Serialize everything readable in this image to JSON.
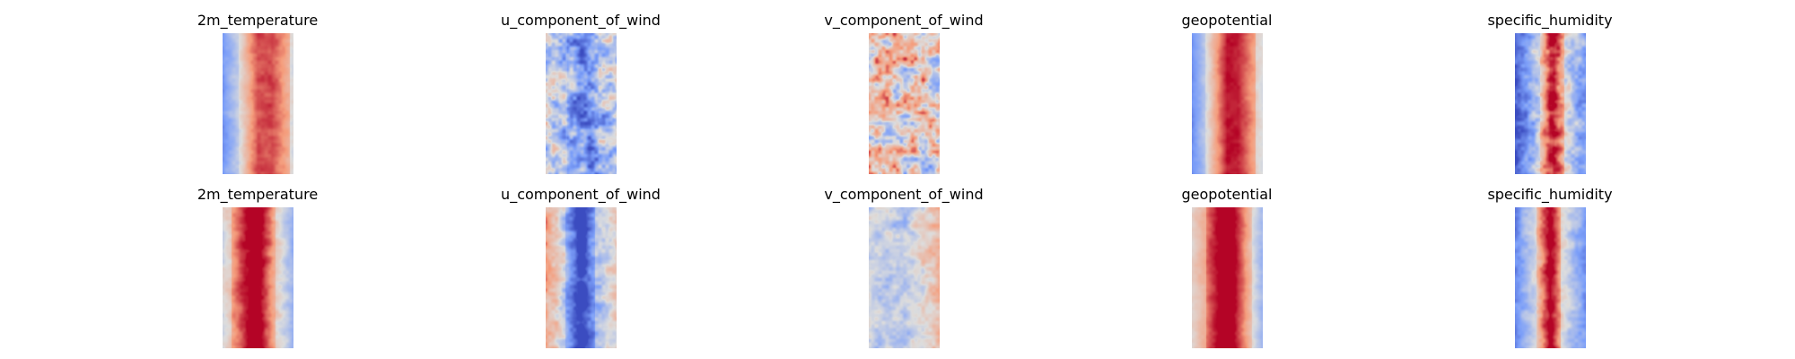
{
  "chart_data": [
    {
      "type": "heatmap",
      "title": "2m_temperature",
      "colormap": "coolwarm",
      "pattern": {
        "edge_left": -0.55,
        "edge_right": 0.0,
        "center": 0.4,
        "band_start": 0.22,
        "band_end": 0.95,
        "band_strength": 0.55,
        "noise": 0.12,
        "peak_col": 0.7
      }
    },
    {
      "type": "heatmap",
      "title": "u_component_of_wind",
      "colormap": "coolwarm",
      "pattern": {
        "edge_left": -0.1,
        "edge_right": -0.2,
        "center": -0.35,
        "band_start": 0.3,
        "band_end": 0.75,
        "band_strength": -0.25,
        "noise": 0.55,
        "peak_col": 0.5
      }
    },
    {
      "type": "heatmap",
      "title": "v_component_of_wind",
      "colormap": "coolwarm",
      "pattern": {
        "edge_left": 0.2,
        "edge_right": 0.1,
        "center": 0.15,
        "band_start": 0.0,
        "band_end": 1.0,
        "band_strength": 0.0,
        "noise": 0.7,
        "peak_col": 0.5
      }
    },
    {
      "type": "heatmap",
      "title": "geopotential",
      "colormap": "coolwarm",
      "pattern": {
        "edge_left": -0.6,
        "edge_right": 0.0,
        "center": 0.55,
        "band_start": 0.18,
        "band_end": 0.9,
        "band_strength": 0.55,
        "noise": 0.1,
        "peak_col": 0.65
      }
    },
    {
      "type": "heatmap",
      "title": "specific_humidity",
      "colormap": "coolwarm",
      "pattern": {
        "edge_left": -0.95,
        "edge_right": -0.5,
        "center": 0.35,
        "band_start": 0.35,
        "band_end": 0.7,
        "band_strength": 0.7,
        "noise": 0.35,
        "peak_col": 0.55
      }
    },
    {
      "type": "heatmap",
      "title": "2m_temperature",
      "colormap": "coolwarm",
      "pattern": {
        "edge_left": 0.0,
        "edge_right": -0.35,
        "center": 0.7,
        "band_start": 0.12,
        "band_end": 0.75,
        "band_strength": 0.6,
        "noise": 0.15,
        "peak_col": 0.4
      }
    },
    {
      "type": "heatmap",
      "title": "u_component_of_wind",
      "colormap": "coolwarm",
      "pattern": {
        "edge_left": 0.4,
        "edge_right": 0.1,
        "center": -0.55,
        "band_start": 0.28,
        "band_end": 0.7,
        "band_strength": -0.6,
        "noise": 0.3,
        "peak_col": 0.5
      }
    },
    {
      "type": "heatmap",
      "title": "v_component_of_wind",
      "colormap": "coolwarm",
      "pattern": {
        "edge_left": -0.1,
        "edge_right": 0.3,
        "center": -0.2,
        "band_start": 0.0,
        "band_end": 1.0,
        "band_strength": 0.0,
        "noise": 0.25,
        "peak_col": 0.9
      }
    },
    {
      "type": "heatmap",
      "title": "geopotential",
      "colormap": "coolwarm",
      "pattern": {
        "edge_left": 0.1,
        "edge_right": -0.3,
        "center": 0.8,
        "band_start": 0.2,
        "band_end": 0.85,
        "band_strength": 0.55,
        "noise": 0.1,
        "peak_col": 0.5
      }
    },
    {
      "type": "heatmap",
      "title": "specific_humidity",
      "colormap": "coolwarm",
      "pattern": {
        "edge_left": -0.6,
        "edge_right": -0.55,
        "center": 0.35,
        "band_start": 0.3,
        "band_end": 0.65,
        "band_strength": 0.75,
        "noise": 0.2,
        "peak_col": 0.5
      }
    }
  ]
}
